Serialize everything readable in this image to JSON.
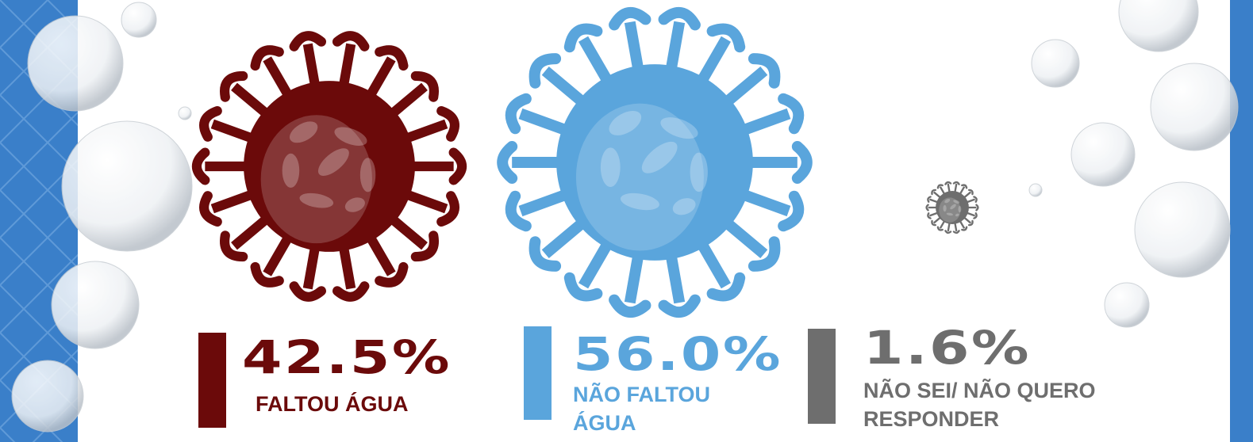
{
  "chart_data": {
    "type": "pictogram",
    "categories": [
      "FALTOU ÁGUA",
      "NÃO FALTOU ÁGUA",
      "NÃO SEI/ NÃO QUERO RESPONDER"
    ],
    "values": [
      42.5,
      56.0,
      1.6
    ],
    "value_labels": [
      "42.5%",
      "56.0%",
      "1.6%"
    ],
    "colors": [
      "#6b0a0a",
      "#5aa5dc",
      "#6e6e6e"
    ]
  }
}
